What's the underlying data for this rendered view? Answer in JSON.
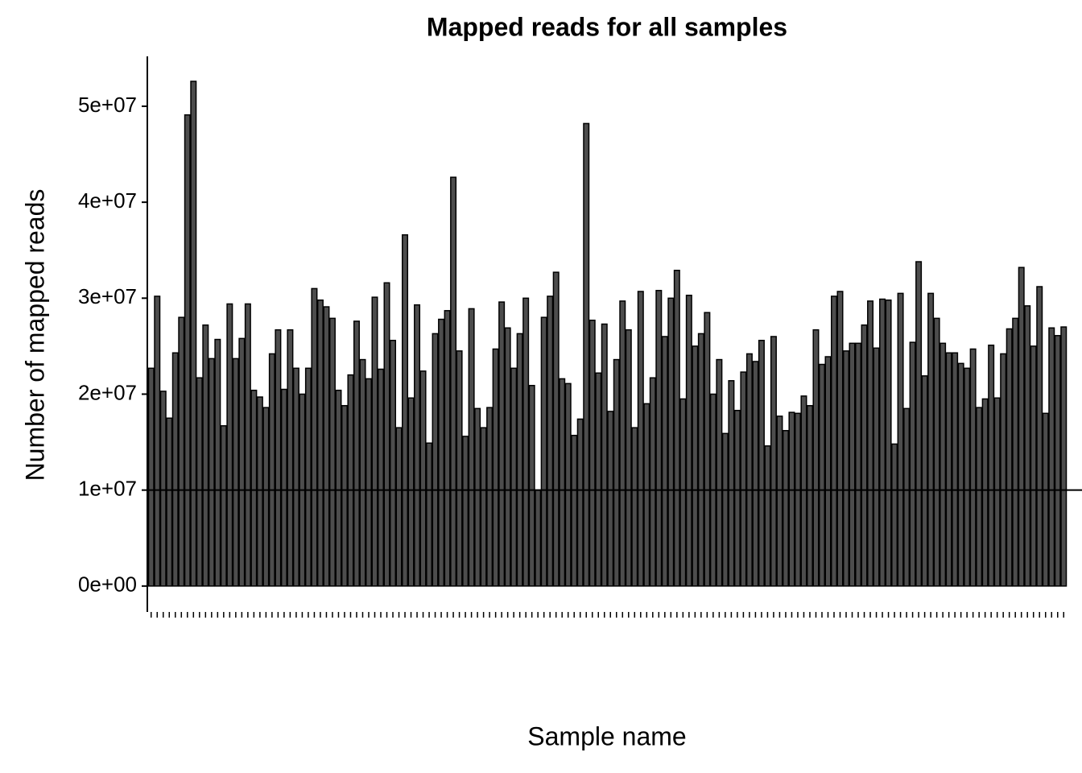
{
  "chart_data": {
    "type": "bar",
    "title": "Mapped reads for all samples",
    "x_label": "Sample name",
    "y_label": "Number of mapped reads",
    "categories": [
      null,
      null,
      null,
      null,
      null,
      null,
      null,
      null,
      null,
      null,
      null,
      null,
      null,
      null,
      null,
      null,
      null,
      null,
      null,
      null,
      null,
      null,
      null,
      null,
      null,
      null,
      null,
      null,
      null,
      null,
      null,
      null,
      null,
      null,
      null,
      null,
      null,
      null,
      null,
      null,
      null,
      null,
      null,
      null,
      null,
      null,
      null,
      null,
      null,
      null,
      null,
      null,
      null,
      null,
      null,
      null,
      null,
      null,
      null,
      null,
      null,
      null,
      null,
      null,
      null,
      null,
      null,
      null,
      null,
      null,
      null,
      null,
      null,
      null,
      null,
      null,
      null,
      null,
      null,
      null,
      null,
      null,
      null,
      null,
      null,
      null,
      null,
      null,
      null,
      null,
      null,
      null,
      null,
      null,
      null,
      null,
      null,
      null,
      null,
      null,
      null,
      null,
      null,
      null,
      null,
      null,
      null,
      null,
      null,
      null,
      null,
      null,
      null,
      null,
      null,
      null,
      null,
      null,
      null,
      null,
      null,
      null,
      null,
      null,
      null,
      null,
      null,
      null,
      null,
      null,
      null,
      null,
      null,
      null,
      null,
      null,
      null,
      null,
      null,
      null,
      null,
      null,
      null,
      null,
      null,
      null,
      null,
      null,
      null,
      null,
      null,
      null
    ],
    "values": [
      22700000,
      30200000,
      20300000,
      17500000,
      24300000,
      28000000,
      49100000,
      52600000,
      21700000,
      27200000,
      23700000,
      25700000,
      16700000,
      29400000,
      23700000,
      25800000,
      29400000,
      20400000,
      19700000,
      18600000,
      24200000,
      26700000,
      20500000,
      26700000,
      22700000,
      20000000,
      22700000,
      31000000,
      29800000,
      29100000,
      27900000,
      20400000,
      18800000,
      22000000,
      27600000,
      23600000,
      21600000,
      30100000,
      22600000,
      31600000,
      25600000,
      16500000,
      36600000,
      19600000,
      29300000,
      22400000,
      14900000,
      26300000,
      27800000,
      28700000,
      42600000,
      24500000,
      15600000,
      28900000,
      18500000,
      16500000,
      18600000,
      24700000,
      29600000,
      26900000,
      22700000,
      26300000,
      30000000,
      20900000,
      10000000,
      28000000,
      30200000,
      32700000,
      21600000,
      21100000,
      15700000,
      17400000,
      48200000,
      27700000,
      22200000,
      27300000,
      18200000,
      23600000,
      29700000,
      26700000,
      16500000,
      30700000,
      19000000,
      21700000,
      30800000,
      26000000,
      30000000,
      32900000,
      19500000,
      30300000,
      25000000,
      26300000,
      28500000,
      20000000,
      23600000,
      15900000,
      21400000,
      18300000,
      22300000,
      24200000,
      23400000,
      25600000,
      14600000,
      26000000,
      17700000,
      16200000,
      18100000,
      18000000,
      19800000,
      18800000,
      26700000,
      23100000,
      23900000,
      30200000,
      30700000,
      24500000,
      25300000,
      25300000,
      27200000,
      29700000,
      24800000,
      29900000,
      29800000,
      14800000,
      30500000,
      18500000,
      25400000,
      33800000,
      21900000,
      30500000,
      27900000,
      25300000,
      24300000,
      24300000,
      23200000,
      22700000,
      24700000,
      18600000,
      19500000,
      25100000,
      19600000,
      24200000,
      26800000,
      27900000,
      33200000,
      29200000,
      25000000,
      31200000,
      18000000,
      26900000,
      26100000,
      27000000
    ],
    "color": "#4d4d4d",
    "hline": 10000000,
    "ylim": [
      -2700000,
      55200000
    ],
    "yticks": [
      {
        "value": 0,
        "label": "0e+00"
      },
      {
        "value": 10000000,
        "label": "1e+07"
      },
      {
        "value": 20000000,
        "label": "2e+07"
      },
      {
        "value": 30000000,
        "label": "3e+07"
      },
      {
        "value": 40000000,
        "label": "4e+07"
      },
      {
        "value": 50000000,
        "label": "5e+07"
      }
    ],
    "grid": false
  }
}
